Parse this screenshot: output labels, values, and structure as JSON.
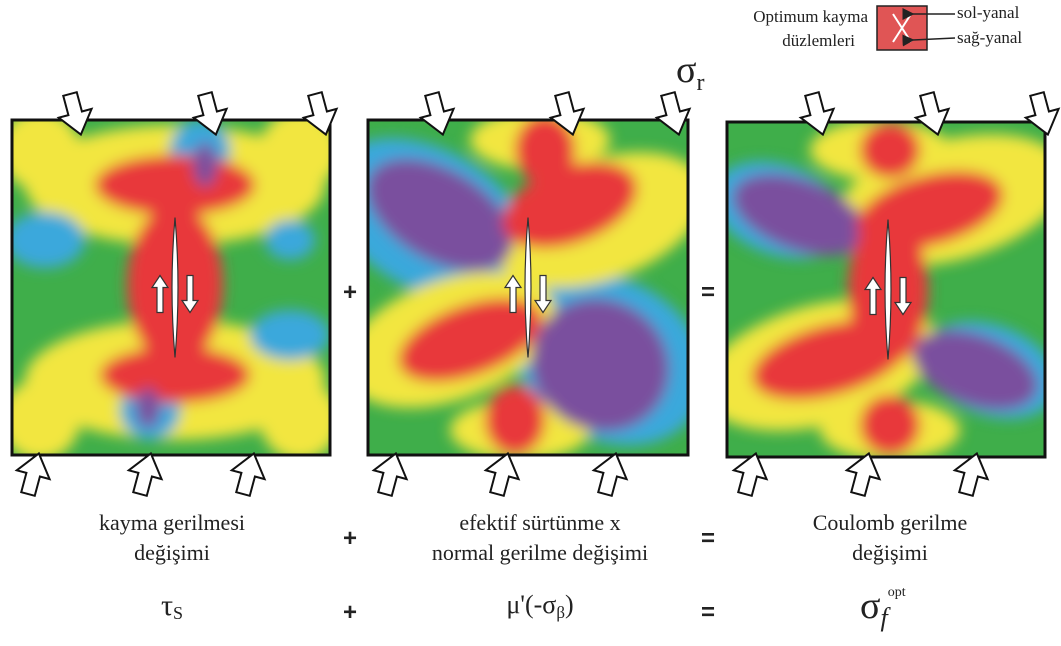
{
  "legend": {
    "label_lines": [
      "Optimum kayma",
      "düzlemleri"
    ],
    "left": "sol-yanal",
    "right": "sağ-yanal"
  },
  "sigma_r": {
    "symbol": "σ",
    "subscript": "r"
  },
  "operators": [
    "+",
    "="
  ],
  "panels": [
    {
      "caption_lines": [
        "kayma gerilmesi",
        "değişimi"
      ],
      "formula": {
        "symbol": "τ",
        "subscript": "S"
      }
    },
    {
      "caption_lines": [
        "efektif sürtünme  x",
        "normal gerilme değişimi"
      ],
      "formula": {
        "symbol": "μ'(-σ",
        "subscript": "β",
        "suffix": ")"
      }
    },
    {
      "caption_lines": [
        "Coulomb gerilme",
        "değişimi"
      ],
      "formula": {
        "symbol": "σ",
        "subscript": "f",
        "superscript": "opt"
      }
    }
  ]
}
